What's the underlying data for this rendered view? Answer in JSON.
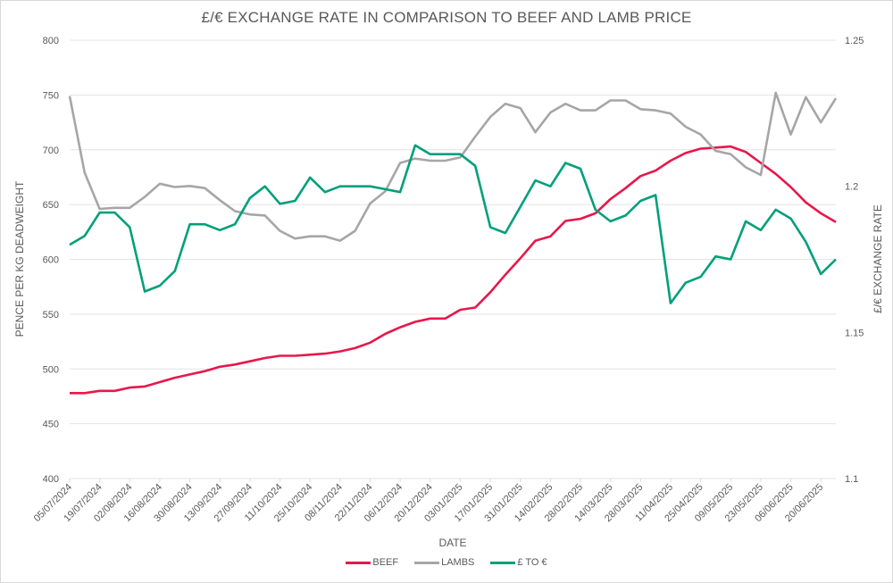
{
  "chart_data": {
    "type": "line",
    "title": "£/€ EXCHANGE RATE IN COMPARISON TO BEEF AND LAMB PRICE",
    "xlabel": "DATE",
    "ylabel": "PENCE PER KG DEADWEIGHT",
    "y2label": "£/€ EXCHANGE RATE",
    "ylim": [
      400,
      800
    ],
    "y2lim": [
      1.1,
      1.25
    ],
    "yticks": [
      "400",
      "450",
      "500",
      "550",
      "600",
      "650",
      "700",
      "750",
      "800"
    ],
    "y2ticks": [
      "1.1",
      "1.15",
      "1.2",
      "1.25"
    ],
    "grid": true,
    "legend_position": "bottom",
    "x_tick_labels": [
      "05/07/2024",
      "19/07/2024",
      "02/08/2024",
      "16/08/2024",
      "30/08/2024",
      "13/09/2024",
      "27/09/2024",
      "11/10/2024",
      "25/10/2024",
      "08/11/2024",
      "22/11/2024",
      "06/12/2024",
      "20/12/2024",
      "03/01/2025",
      "17/01/2025",
      "31/01/2025",
      "14/02/2025",
      "28/02/2025",
      "14/03/2025",
      "28/03/2025",
      "11/04/2025",
      "25/04/2025",
      "09/05/2025",
      "23/05/2025",
      "06/06/2025",
      "20/06/2025"
    ],
    "point_count": 52,
    "series": [
      {
        "name": "BEEF",
        "axis": "left",
        "color": "#e8174a",
        "values": [
          478,
          478,
          480,
          480,
          483,
          484,
          488,
          492,
          495,
          498,
          502,
          504,
          507,
          510,
          512,
          512,
          513,
          514,
          516,
          519,
          524,
          532,
          538,
          543,
          546,
          546,
          554,
          556,
          570,
          586,
          601,
          617,
          621,
          635,
          637,
          642,
          655,
          665,
          676,
          681,
          690,
          697,
          701,
          702,
          703,
          698,
          688,
          678,
          666,
          652,
          642,
          634
        ]
      },
      {
        "name": "LAMBS",
        "axis": "left",
        "color": "#a6a6a6",
        "values": [
          749,
          679,
          646,
          647,
          647,
          657,
          669,
          666,
          667,
          665,
          654,
          644,
          641,
          640,
          626,
          619,
          621,
          621,
          617,
          626,
          651,
          662,
          688,
          692,
          690,
          690,
          693,
          712,
          730,
          742,
          738,
          716,
          734,
          742,
          736,
          736,
          745,
          745,
          737,
          736,
          733,
          721,
          714,
          699,
          696,
          684,
          677,
          752,
          714,
          748,
          725,
          747
        ]
      },
      {
        "name": "£ TO €",
        "axis": "right",
        "color": "#00a07a",
        "values": [
          1.18,
          1.183,
          1.191,
          1.191,
          1.186,
          1.164,
          1.166,
          1.171,
          1.187,
          1.187,
          1.185,
          1.187,
          1.196,
          1.2,
          1.194,
          1.195,
          1.203,
          1.198,
          1.2,
          1.2,
          1.2,
          1.199,
          1.198,
          1.214,
          1.211,
          1.211,
          1.211,
          1.207,
          1.186,
          1.184,
          1.193,
          1.202,
          1.2,
          1.208,
          1.206,
          1.192,
          1.188,
          1.19,
          1.195,
          1.197,
          1.16,
          1.167,
          1.169,
          1.176,
          1.175,
          1.188,
          1.185,
          1.192,
          1.189,
          1.181,
          1.17,
          1.175
        ]
      }
    ]
  }
}
